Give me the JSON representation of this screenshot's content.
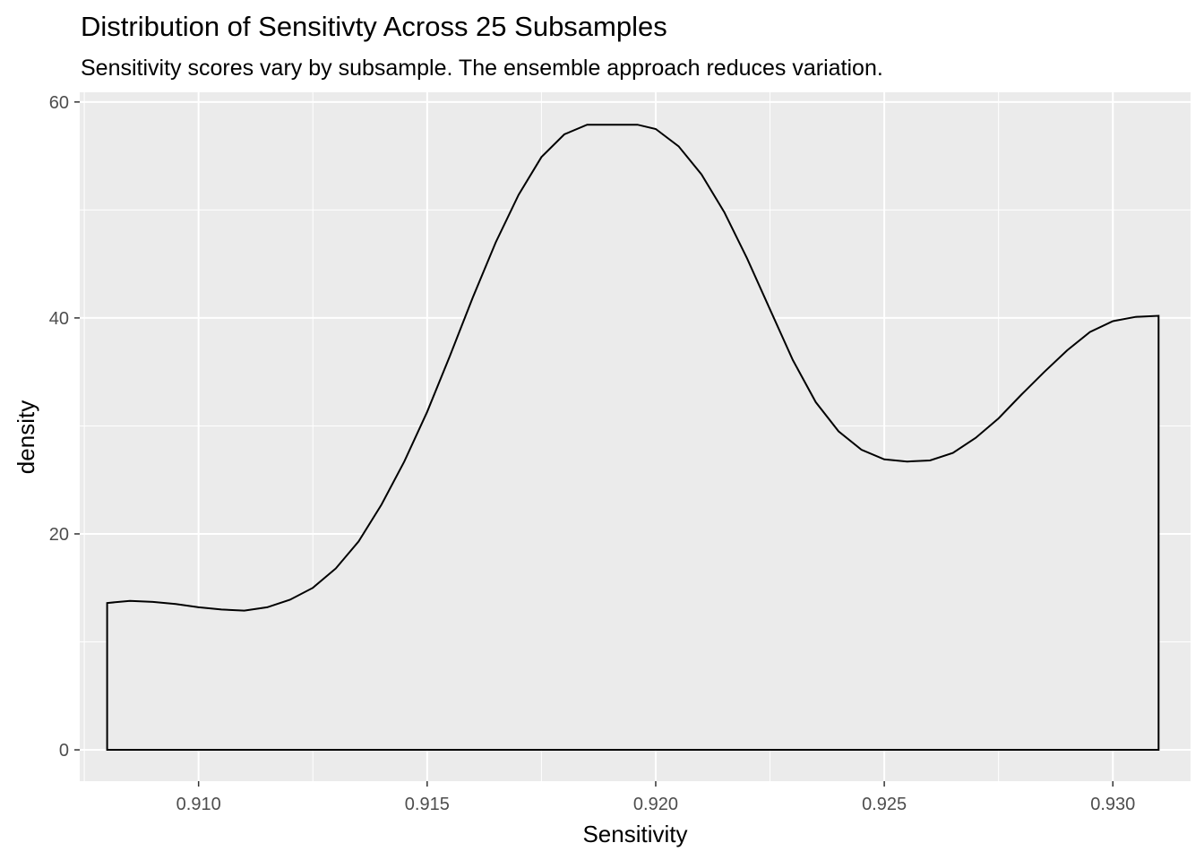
{
  "chart_data": {
    "type": "area",
    "title": "Distribution of Sensitivty Across 25 Subsamples",
    "subtitle": "Sensitivity scores vary by subsample. The ensemble approach reduces variation.",
    "xlabel": "Sensitivity",
    "ylabel": "density",
    "xlim": [
      0.9074,
      0.9317
    ],
    "ylim": [
      -2.9,
      60.9
    ],
    "x_ticks": [
      0.91,
      0.915,
      0.92,
      0.925,
      0.93
    ],
    "x_tick_labels": [
      "0.910",
      "0.915",
      "0.920",
      "0.925",
      "0.930"
    ],
    "y_ticks": [
      0,
      20,
      40,
      60
    ],
    "y_tick_labels": [
      "0",
      "20",
      "40",
      "60"
    ],
    "grid": true,
    "legend": "none",
    "colors": {
      "panel_bg": "#ebebeb",
      "grid": "#ffffff",
      "line": "#000000"
    },
    "series": [
      {
        "x": [
          0.908,
          0.9085,
          0.909,
          0.9095,
          0.91,
          0.9105,
          0.911,
          0.9115,
          0.912,
          0.9125,
          0.913,
          0.9135,
          0.914,
          0.9145,
          0.915,
          0.9155,
          0.916,
          0.9165,
          0.917,
          0.9175,
          0.918,
          0.9185,
          0.919,
          0.9196,
          0.92,
          0.9205,
          0.921,
          0.9215,
          0.922,
          0.9225,
          0.923,
          0.9235,
          0.924,
          0.9245,
          0.925,
          0.9255,
          0.926,
          0.9265,
          0.927,
          0.9275,
          0.928,
          0.9285,
          0.929,
          0.9295,
          0.93,
          0.9305,
          0.931
        ],
        "values": [
          13.6,
          13.8,
          13.7,
          13.5,
          13.2,
          13.0,
          12.9,
          13.2,
          13.9,
          15.0,
          16.8,
          19.3,
          22.7,
          26.7,
          31.3,
          36.5,
          41.9,
          47.0,
          51.4,
          54.9,
          57.0,
          57.9,
          57.9,
          57.9,
          57.5,
          55.9,
          53.3,
          49.8,
          45.5,
          40.8,
          36.1,
          32.2,
          29.5,
          27.8,
          26.9,
          26.7,
          26.8,
          27.5,
          28.9,
          30.7,
          32.9,
          35.0,
          37.0,
          38.7,
          39.7,
          40.1,
          40.2
        ]
      }
    ]
  }
}
